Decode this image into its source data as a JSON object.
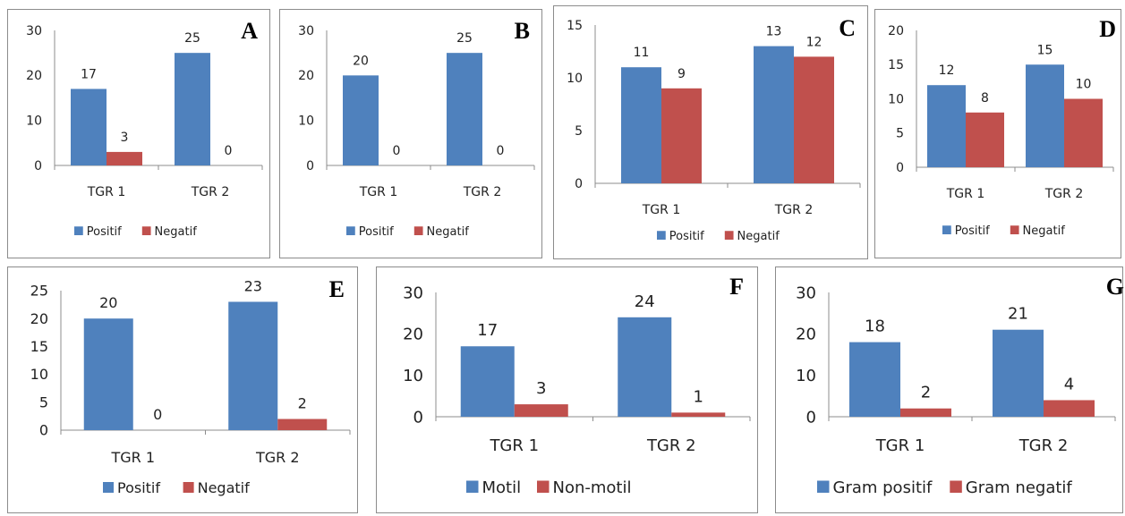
{
  "colors": {
    "series1": "#4F81BD",
    "series2": "#C0504D",
    "axis": "#8c8c8c"
  },
  "chart_data": [
    {
      "id": "A",
      "type": "bar",
      "panel_label": "A",
      "categories": [
        "TGR 1",
        "TGR 2"
      ],
      "series": [
        {
          "name": "Positif",
          "values": [
            17,
            25
          ]
        },
        {
          "name": "Negatif",
          "values": [
            3,
            0
          ]
        }
      ],
      "ylim": [
        0,
        30
      ],
      "yticks": [
        0,
        10,
        20,
        30
      ],
      "grid": false,
      "legend": "bottom"
    },
    {
      "id": "B",
      "type": "bar",
      "panel_label": "B",
      "categories": [
        "TGR 1",
        "TGR 2"
      ],
      "series": [
        {
          "name": "Positif",
          "values": [
            20,
            25
          ]
        },
        {
          "name": "Negatif",
          "values": [
            0,
            0
          ]
        }
      ],
      "ylim": [
        0,
        30
      ],
      "yticks": [
        0,
        10,
        20,
        30
      ],
      "grid": false,
      "legend": "bottom"
    },
    {
      "id": "C",
      "type": "bar",
      "panel_label": "C",
      "categories": [
        "TGR 1",
        "TGR 2"
      ],
      "series": [
        {
          "name": "Positif",
          "values": [
            11,
            13
          ]
        },
        {
          "name": "Negatif",
          "values": [
            9,
            12
          ]
        }
      ],
      "ylim": [
        0,
        15
      ],
      "yticks": [
        0,
        5,
        10,
        15
      ],
      "grid": false,
      "legend": "bottom"
    },
    {
      "id": "D",
      "type": "bar",
      "panel_label": "D",
      "categories": [
        "TGR 1",
        "TGR 2"
      ],
      "series": [
        {
          "name": "Positif",
          "values": [
            12,
            15
          ]
        },
        {
          "name": "Negatif",
          "values": [
            8,
            10
          ]
        }
      ],
      "ylim": [
        0,
        20
      ],
      "yticks": [
        0,
        5,
        10,
        15,
        20
      ],
      "grid": false,
      "legend": "bottom"
    },
    {
      "id": "E",
      "type": "bar",
      "panel_label": "E",
      "categories": [
        "TGR 1",
        "TGR 2"
      ],
      "series": [
        {
          "name": "Positif",
          "values": [
            20,
            23
          ]
        },
        {
          "name": "Negatif",
          "values": [
            0,
            2
          ]
        }
      ],
      "ylim": [
        0,
        25
      ],
      "yticks": [
        0,
        5,
        10,
        15,
        20,
        25
      ],
      "grid": false,
      "legend": "bottom"
    },
    {
      "id": "F",
      "type": "bar",
      "panel_label": "F",
      "categories": [
        "TGR 1",
        "TGR 2"
      ],
      "series": [
        {
          "name": "Motil",
          "values": [
            17,
            24
          ]
        },
        {
          "name": "Non-motil",
          "values": [
            3,
            1
          ]
        }
      ],
      "ylim": [
        0,
        30
      ],
      "yticks": [
        0,
        10,
        20,
        30
      ],
      "grid": false,
      "legend": "bottom"
    },
    {
      "id": "G",
      "type": "bar",
      "panel_label": "G",
      "categories": [
        "TGR 1",
        "TGR 2"
      ],
      "series": [
        {
          "name": "Gram positif",
          "values": [
            18,
            21
          ]
        },
        {
          "name": "Gram negatif",
          "values": [
            2,
            4
          ]
        }
      ],
      "ylim": [
        0,
        30
      ],
      "yticks": [
        0,
        10,
        20,
        30
      ],
      "grid": false,
      "legend": "bottom"
    }
  ]
}
